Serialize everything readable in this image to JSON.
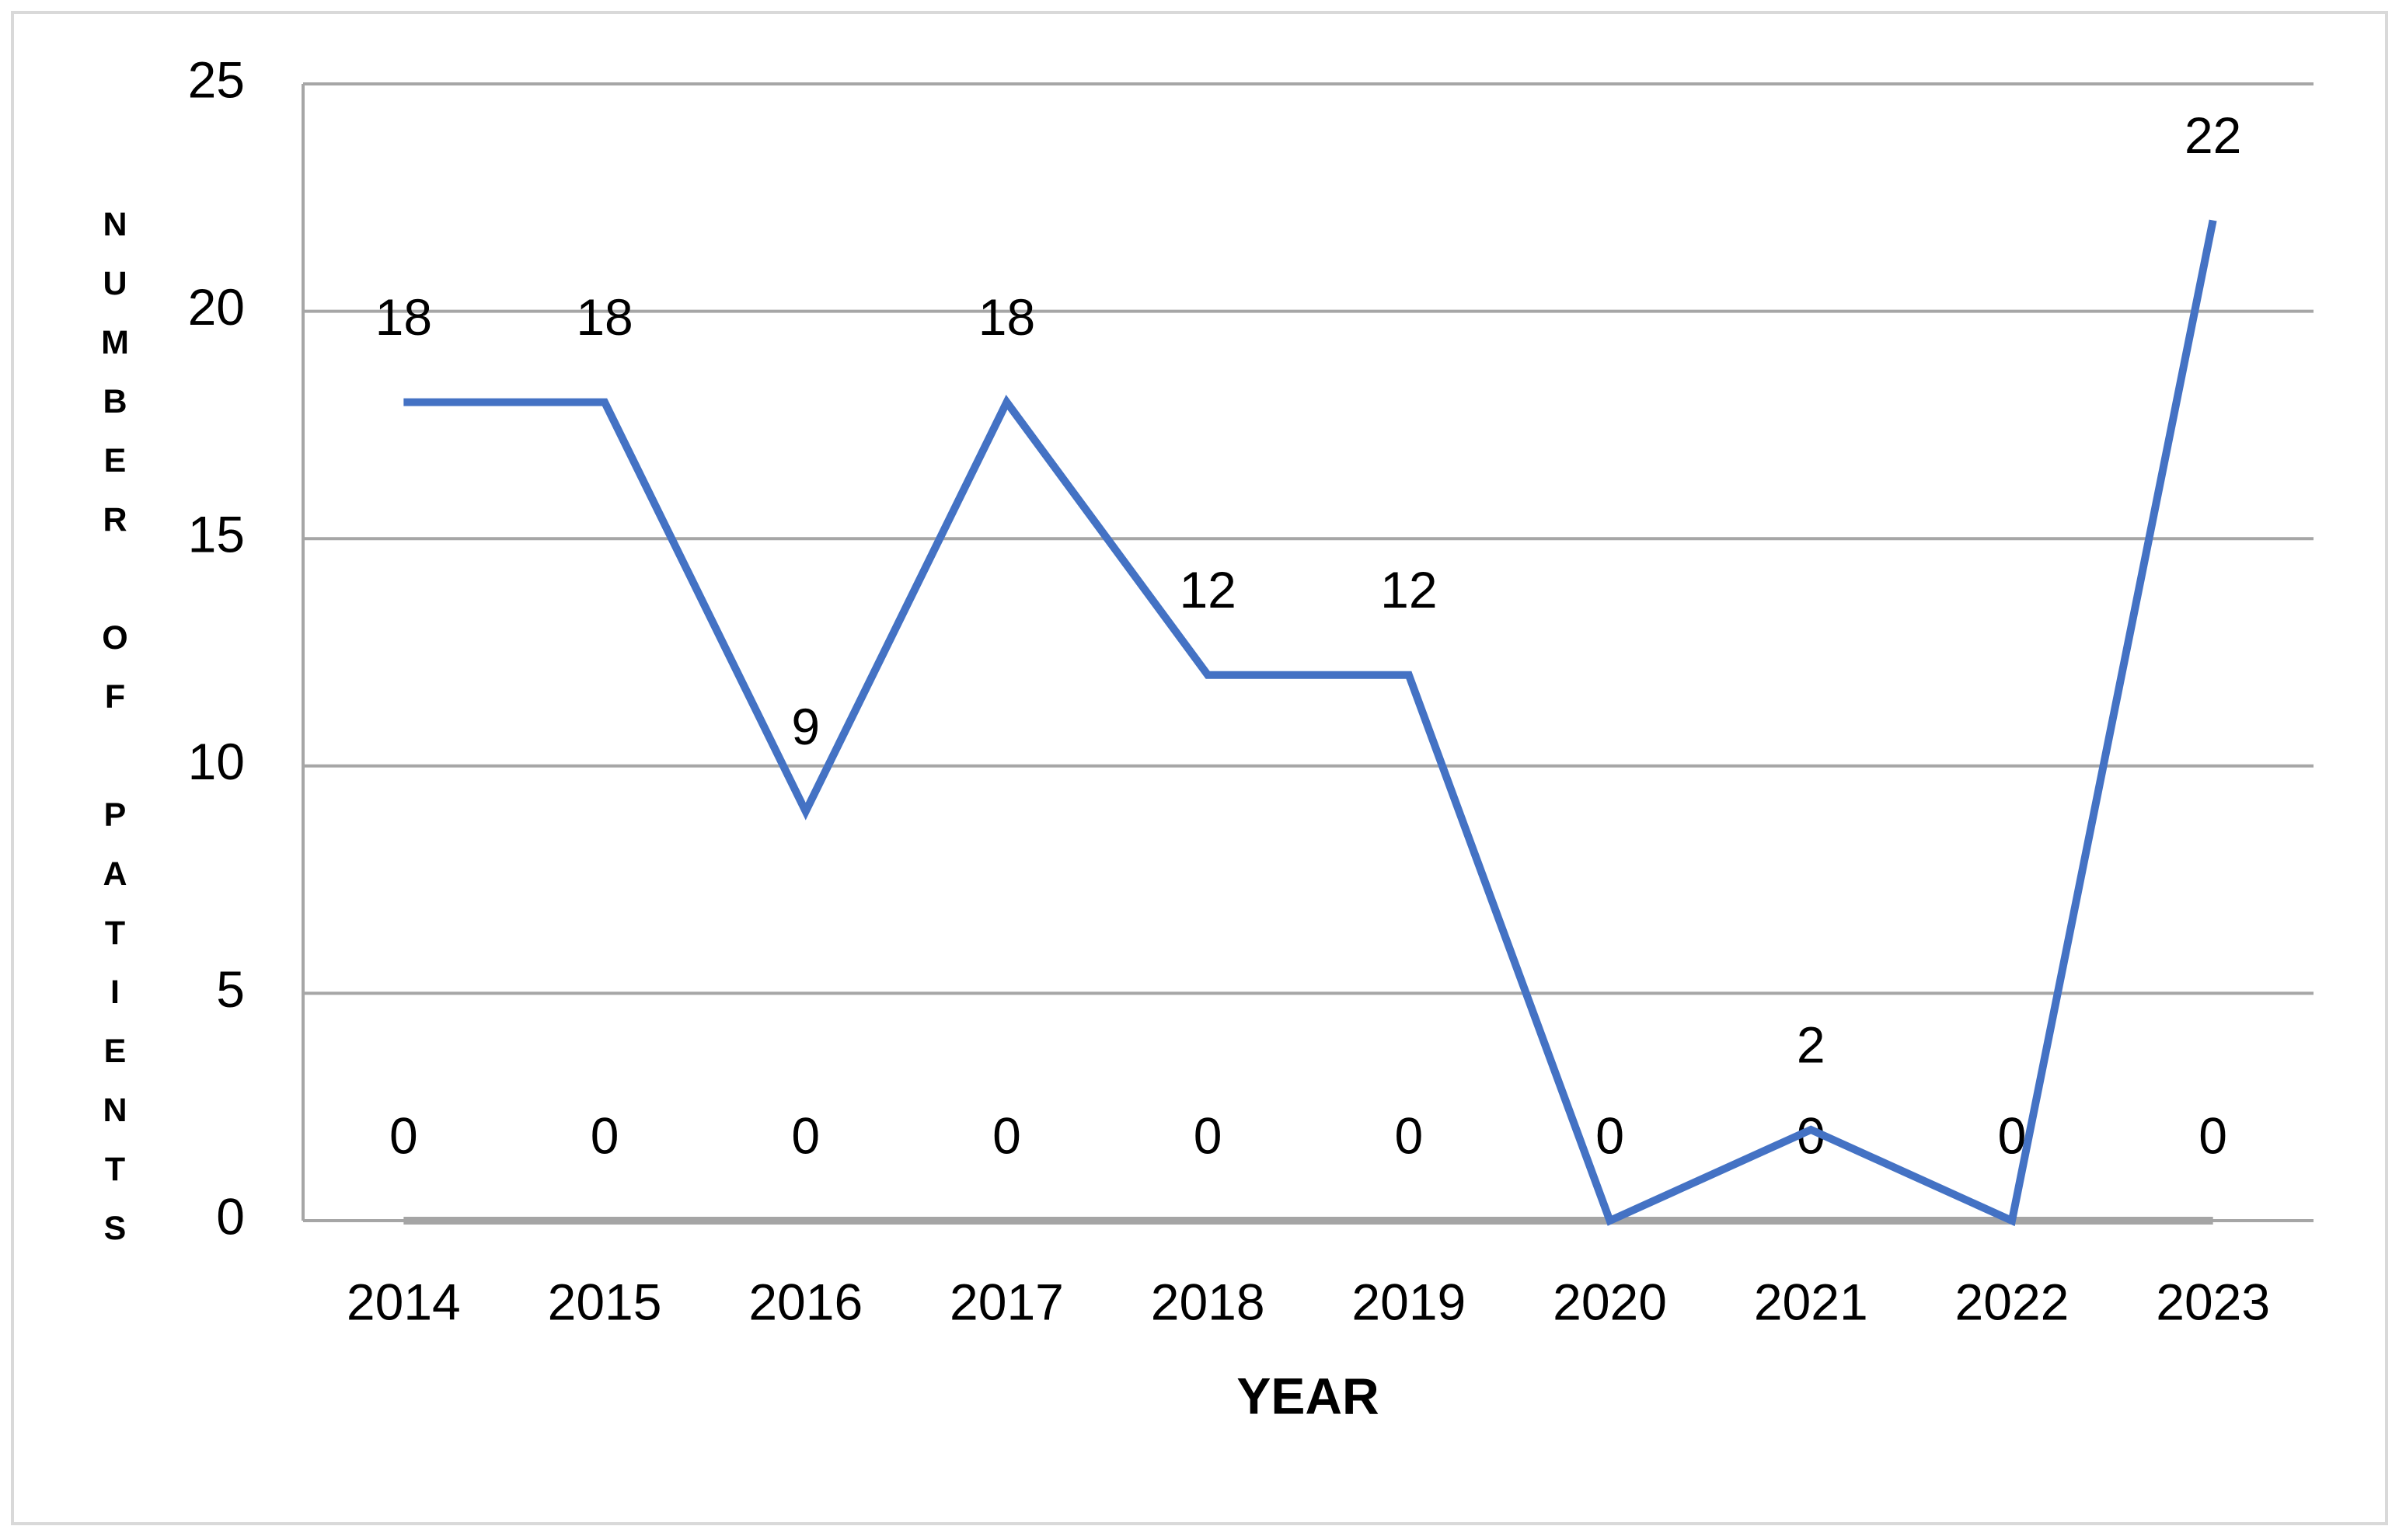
{
  "chart_data": {
    "type": "line",
    "x_label": "YEAR",
    "y_label": "NUMBER OF PATIENTS",
    "categories": [
      "2014",
      "2015",
      "2016",
      "2017",
      "2018",
      "2019",
      "2020",
      "2021",
      "2022",
      "2023"
    ],
    "series": [
      {
        "color": "#a5a5a5",
        "values": [
          0,
          0,
          0,
          0,
          0,
          0,
          0,
          0,
          0,
          0
        ]
      },
      {
        "color": "#4472c4",
        "values": [
          18,
          18,
          9,
          18,
          12,
          12,
          0,
          2,
          0,
          22
        ]
      }
    ],
    "ylim": [
      0,
      25
    ],
    "yticks": [
      0,
      5,
      10,
      15,
      20,
      25
    ],
    "grid": true
  }
}
